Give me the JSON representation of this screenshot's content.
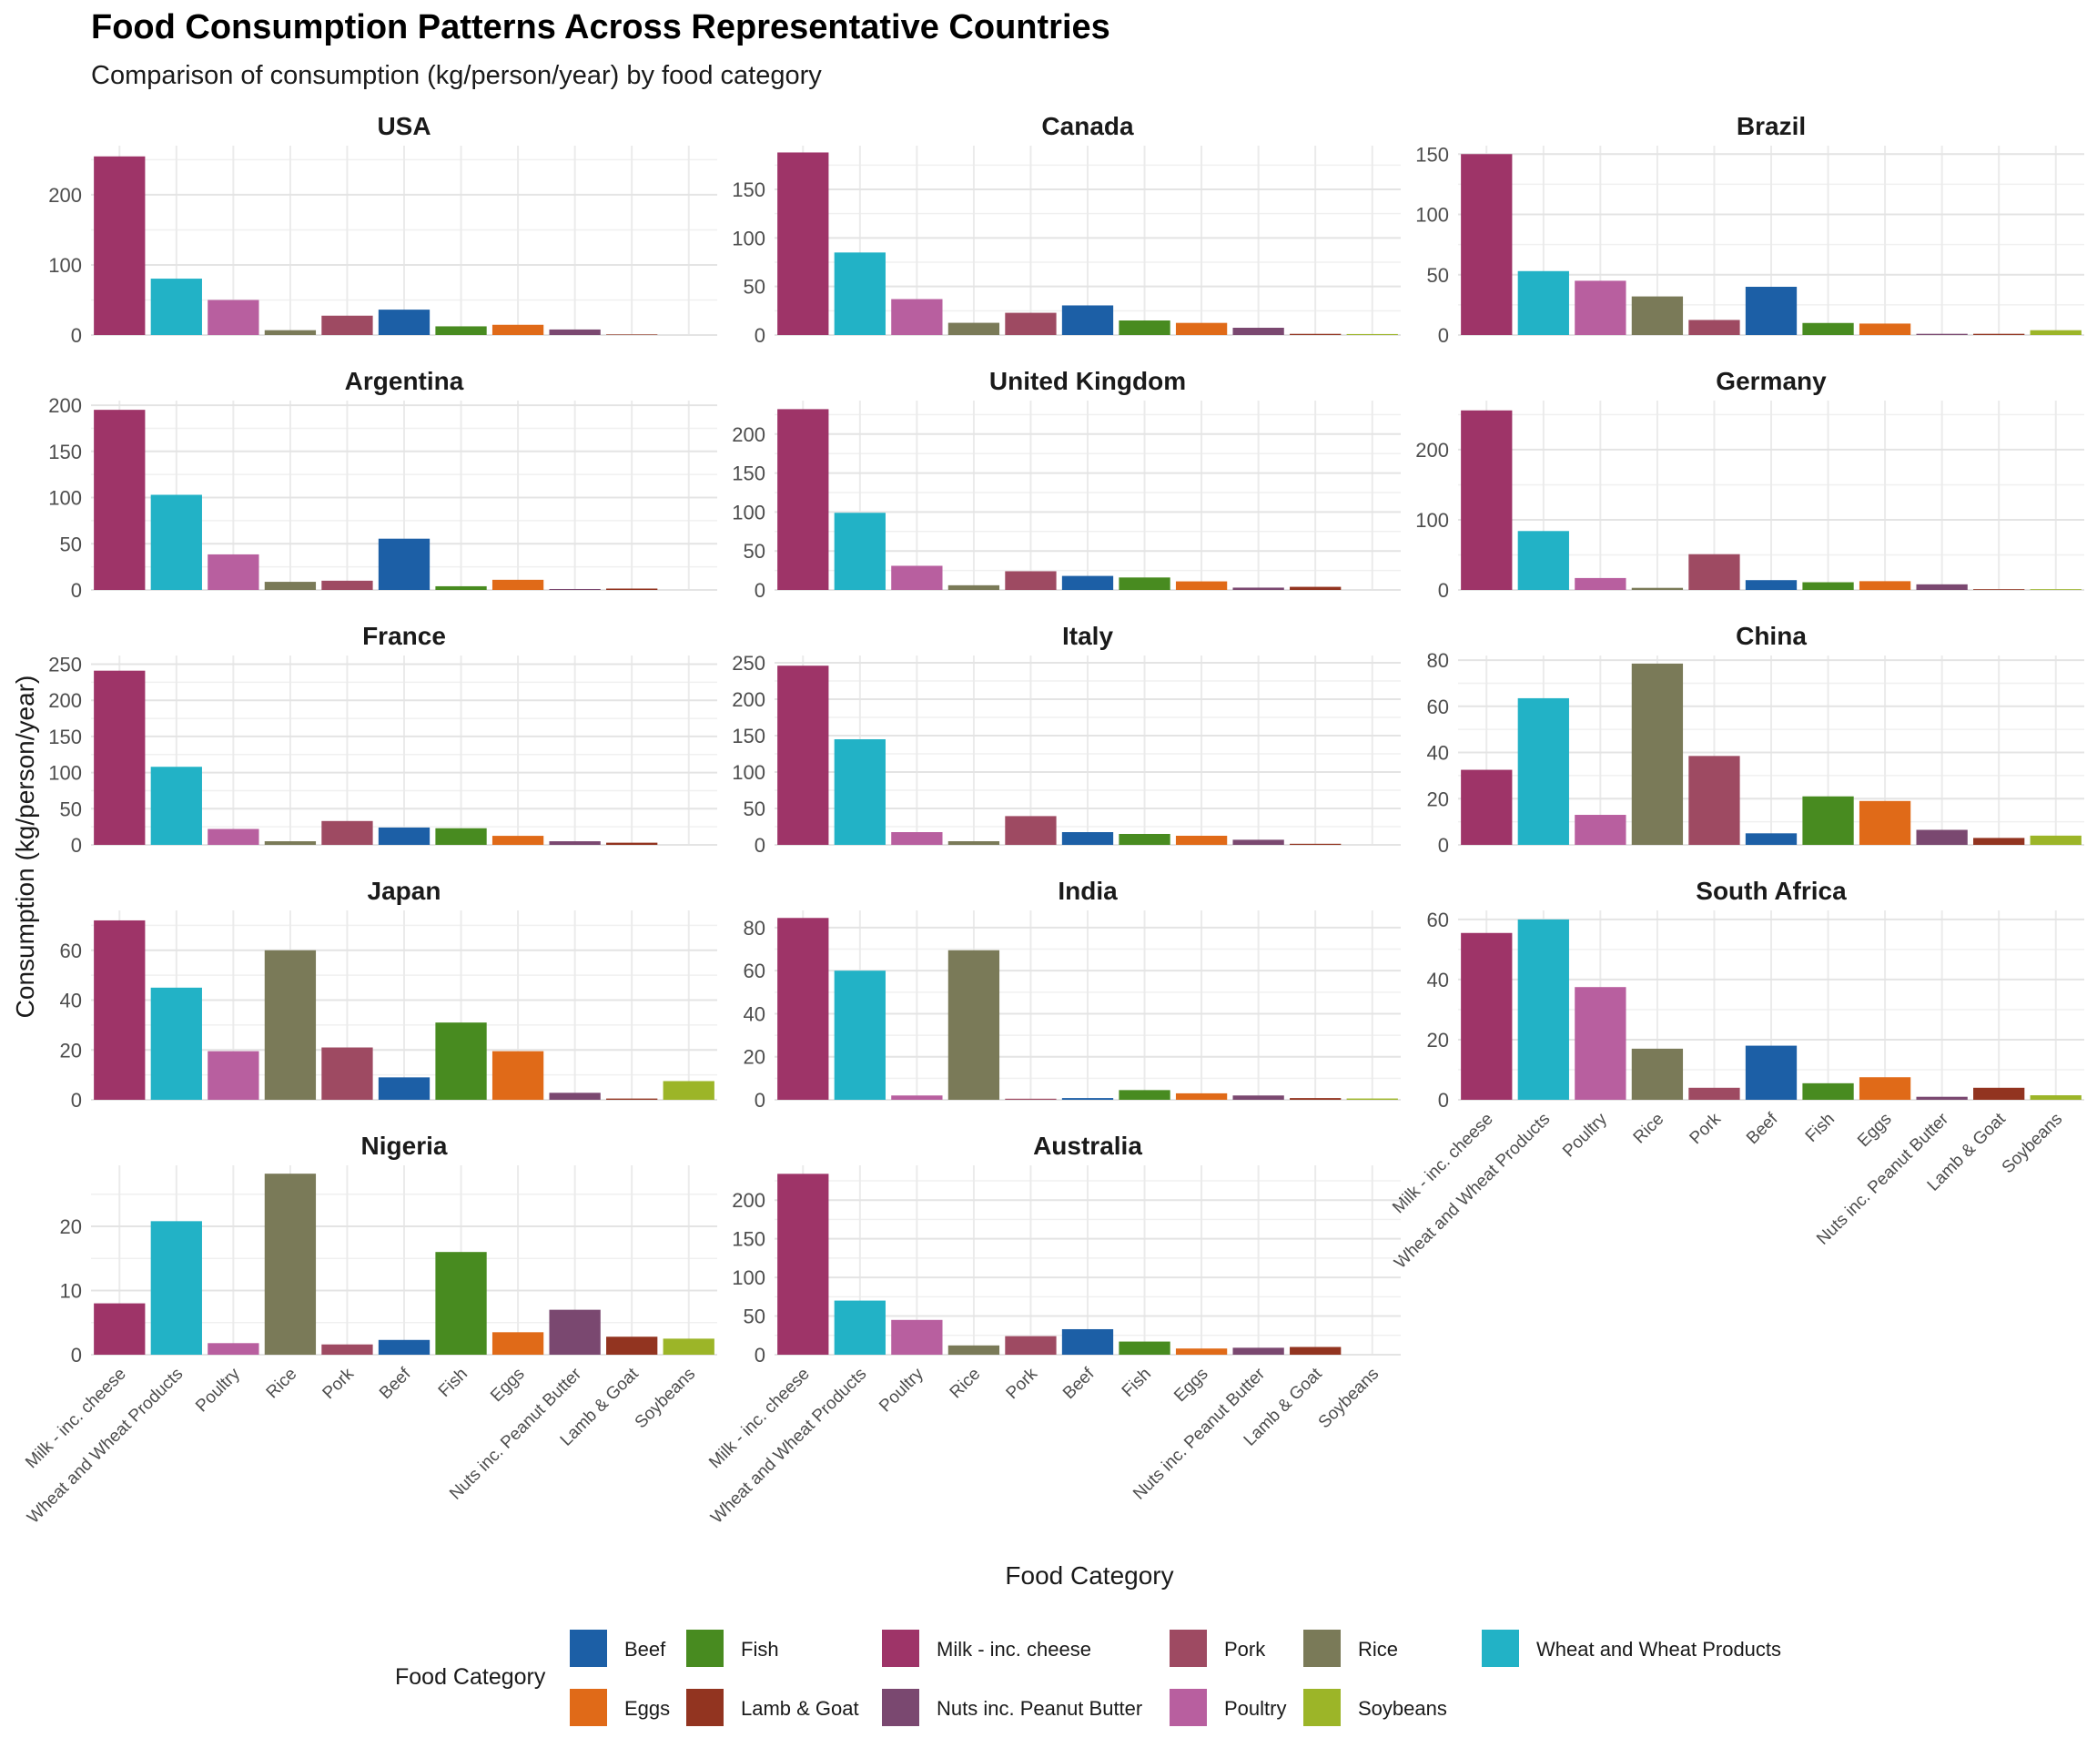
{
  "title": "Food Consumption Patterns Across Representative Countries",
  "subtitle": "Comparison of consumption (kg/person/year) by food category",
  "xlabel": "Food Category",
  "ylabel": "Consumption (kg/person/year)",
  "legend_title": "Food Category",
  "legend_entries": [
    "Beef",
    "Eggs",
    "Fish",
    "Lamb & Goat",
    "Milk - inc. cheese",
    "Nuts inc. Peanut Butter",
    "Pork",
    "Poultry",
    "Rice",
    "Soybeans",
    "Wheat and Wheat Products"
  ],
  "colors": {
    "Milk - inc. cheese": "#9E3468",
    "Wheat and Wheat Products": "#22B2C6",
    "Poultry": "#B85F9F",
    "Rice": "#7A7A58",
    "Pork": "#9E4A62",
    "Beef": "#1C5FA6",
    "Fish": "#488B20",
    "Eggs": "#E06A18",
    "Nuts inc. Peanut Butter": "#7A4870",
    "Lamb & Goat": "#923420",
    "Soybeans": "#9CB528"
  },
  "chart_data": {
    "type": "bar",
    "layout": "facet-wrap 3 columns",
    "categories": [
      "Milk - inc. cheese",
      "Wheat and Wheat Products",
      "Poultry",
      "Rice",
      "Pork",
      "Beef",
      "Fish",
      "Eggs",
      "Nuts inc. Peanut Butter",
      "Lamb & Goat",
      "Soybeans"
    ],
    "legend_position": "bottom",
    "grid": true,
    "facets": [
      {
        "name": "USA",
        "ylim": [
          0,
          270
        ],
        "yticks": [
          0,
          100,
          200
        ],
        "values": [
          254.7,
          80.4,
          50.0,
          6.9,
          27.6,
          36.2,
          12.4,
          14.6,
          7.9,
          0.8,
          0.0
        ]
      },
      {
        "name": "Canada",
        "ylim": [
          0,
          195
        ],
        "yticks": [
          0,
          50,
          100,
          150
        ],
        "values": [
          188.0,
          85.0,
          37.0,
          12.6,
          22.9,
          30.5,
          15.0,
          12.5,
          7.5,
          1.2,
          1.0
        ]
      },
      {
        "name": "Brazil",
        "ylim": [
          0,
          157
        ],
        "yticks": [
          0,
          50,
          100,
          150
        ],
        "values": [
          150.0,
          53.0,
          45.0,
          32.0,
          12.5,
          40.0,
          10.0,
          9.5,
          1.0,
          1.0,
          4.0
        ]
      },
      {
        "name": "Argentina",
        "ylim": [
          0,
          205
        ],
        "yticks": [
          0,
          50,
          100,
          150,
          200
        ],
        "values": [
          195.0,
          103.0,
          38.5,
          8.8,
          10.0,
          55.5,
          4.0,
          11.0,
          1.0,
          1.5,
          0.0
        ]
      },
      {
        "name": "United Kingdom",
        "ylim": [
          0,
          243
        ],
        "yticks": [
          0,
          50,
          100,
          150,
          200
        ],
        "values": [
          232.0,
          99.0,
          31.0,
          6.0,
          24.0,
          18.0,
          16.0,
          11.0,
          3.0,
          4.0,
          0.0
        ]
      },
      {
        "name": "Germany",
        "ylim": [
          0,
          270
        ],
        "yticks": [
          0,
          100,
          200
        ],
        "values": [
          256.0,
          84.0,
          17.0,
          3.0,
          51.0,
          14.0,
          11.0,
          12.5,
          8.0,
          1.0,
          1.0
        ]
      },
      {
        "name": "France",
        "ylim": [
          0,
          262
        ],
        "yticks": [
          0,
          50,
          100,
          150,
          200,
          250
        ],
        "values": [
          241.0,
          108.0,
          22.0,
          5.0,
          33.0,
          24.0,
          23.0,
          12.5,
          5.0,
          3.0,
          0.0
        ]
      },
      {
        "name": "Italy",
        "ylim": [
          0,
          260
        ],
        "yticks": [
          0,
          50,
          100,
          150,
          200,
          250
        ],
        "values": [
          246.0,
          145.0,
          17.5,
          5.0,
          39.5,
          17.5,
          15.0,
          12.5,
          7.0,
          1.5,
          0.0
        ]
      },
      {
        "name": "China",
        "ylim": [
          0,
          82
        ],
        "yticks": [
          0,
          20,
          40,
          60,
          80
        ],
        "values": [
          32.5,
          63.5,
          13.0,
          78.5,
          38.5,
          5.0,
          21.0,
          19.0,
          6.5,
          3.0,
          4.0
        ]
      },
      {
        "name": "Japan",
        "ylim": [
          0,
          76
        ],
        "yticks": [
          0,
          20,
          40,
          60
        ],
        "values": [
          72.0,
          45.0,
          19.5,
          60.0,
          21.0,
          9.0,
          31.0,
          19.5,
          2.8,
          0.5,
          7.5
        ]
      },
      {
        "name": "India",
        "ylim": [
          0,
          88
        ],
        "yticks": [
          0,
          20,
          40,
          60,
          80
        ],
        "values": [
          84.5,
          60.0,
          2.0,
          69.5,
          0.5,
          0.8,
          4.5,
          3.0,
          2.0,
          0.8,
          0.6
        ]
      },
      {
        "name": "South Africa",
        "ylim": [
          0,
          63
        ],
        "yticks": [
          0,
          20,
          40,
          60
        ],
        "values": [
          55.5,
          60.0,
          37.5,
          17.0,
          4.0,
          18.0,
          5.5,
          7.5,
          1.0,
          4.0,
          1.5
        ]
      },
      {
        "name": "Nigeria",
        "ylim": [
          0,
          29.5
        ],
        "yticks": [
          0,
          10,
          20
        ],
        "values": [
          8.0,
          20.8,
          1.8,
          28.2,
          1.6,
          2.3,
          16.0,
          3.5,
          7.0,
          2.8,
          2.5
        ]
      },
      {
        "name": "Australia",
        "ylim": [
          0,
          245
        ],
        "yticks": [
          0,
          50,
          100,
          150,
          200
        ],
        "values": [
          234.0,
          70.0,
          45.0,
          12.0,
          24.0,
          33.0,
          17.0,
          8.0,
          9.0,
          10.0,
          0.0
        ]
      }
    ]
  }
}
